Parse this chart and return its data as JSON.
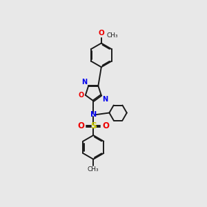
{
  "bg_color": "#e8e8e8",
  "bond_color": "#1a1a1a",
  "N_color": "#0000ee",
  "O_color": "#ee0000",
  "S_color": "#cccc00",
  "figsize": [
    3.0,
    3.0
  ],
  "dpi": 100,
  "xlim": [
    1.5,
    8.5
  ],
  "ylim": [
    0.3,
    10.3
  ]
}
